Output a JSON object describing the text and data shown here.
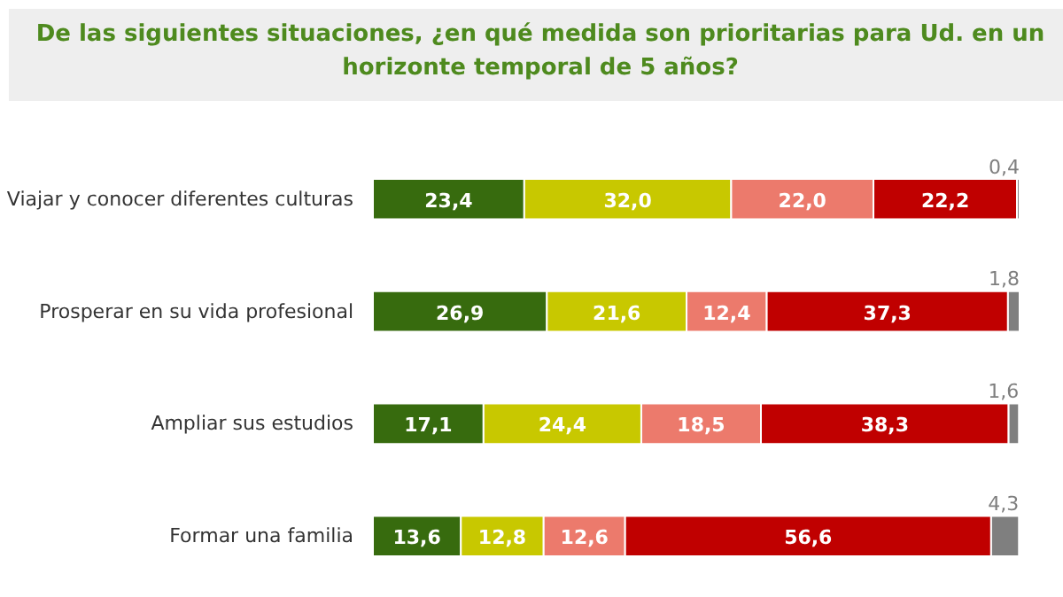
{
  "chart_data": {
    "type": "bar",
    "orientation": "horizontal",
    "stacked": true,
    "title": "De las siguientes situaciones, ¿en qué medida son prioritarias para Ud. en un\nhorizonte temporal de 5 años?",
    "categories": [
      "Viajar y conocer diferentes culturas",
      "Prosperar en su vida profesional",
      "Ampliar sus estudios",
      "Formar una familia"
    ],
    "series": [
      {
        "color": "#376b0e",
        "values": [
          23.4,
          26.9,
          17.1,
          13.6
        ],
        "value_labels": [
          "23,4",
          "26,9",
          "17,1",
          "13,6"
        ]
      },
      {
        "color": "#c8c800",
        "values": [
          32.0,
          21.6,
          24.4,
          12.8
        ],
        "value_labels": [
          "32,0",
          "21,6",
          "24,4",
          "12,8"
        ]
      },
      {
        "color": "#ec7a6c",
        "values": [
          22.0,
          12.4,
          18.5,
          12.6
        ],
        "value_labels": [
          "22,0",
          "12,4",
          "18,5",
          "12,6"
        ]
      },
      {
        "color": "#c00000",
        "values": [
          22.2,
          37.3,
          38.3,
          56.6
        ],
        "value_labels": [
          "22,2",
          "37,3",
          "38,3",
          "56,6"
        ]
      },
      {
        "color": "#7f7f7f",
        "values": [
          0.4,
          1.8,
          1.6,
          4.3
        ],
        "value_labels": [
          "0,4",
          "1,8",
          "1,6",
          "4,3"
        ]
      }
    ],
    "xlim": [
      0,
      100
    ],
    "tick_labels": "y"
  }
}
